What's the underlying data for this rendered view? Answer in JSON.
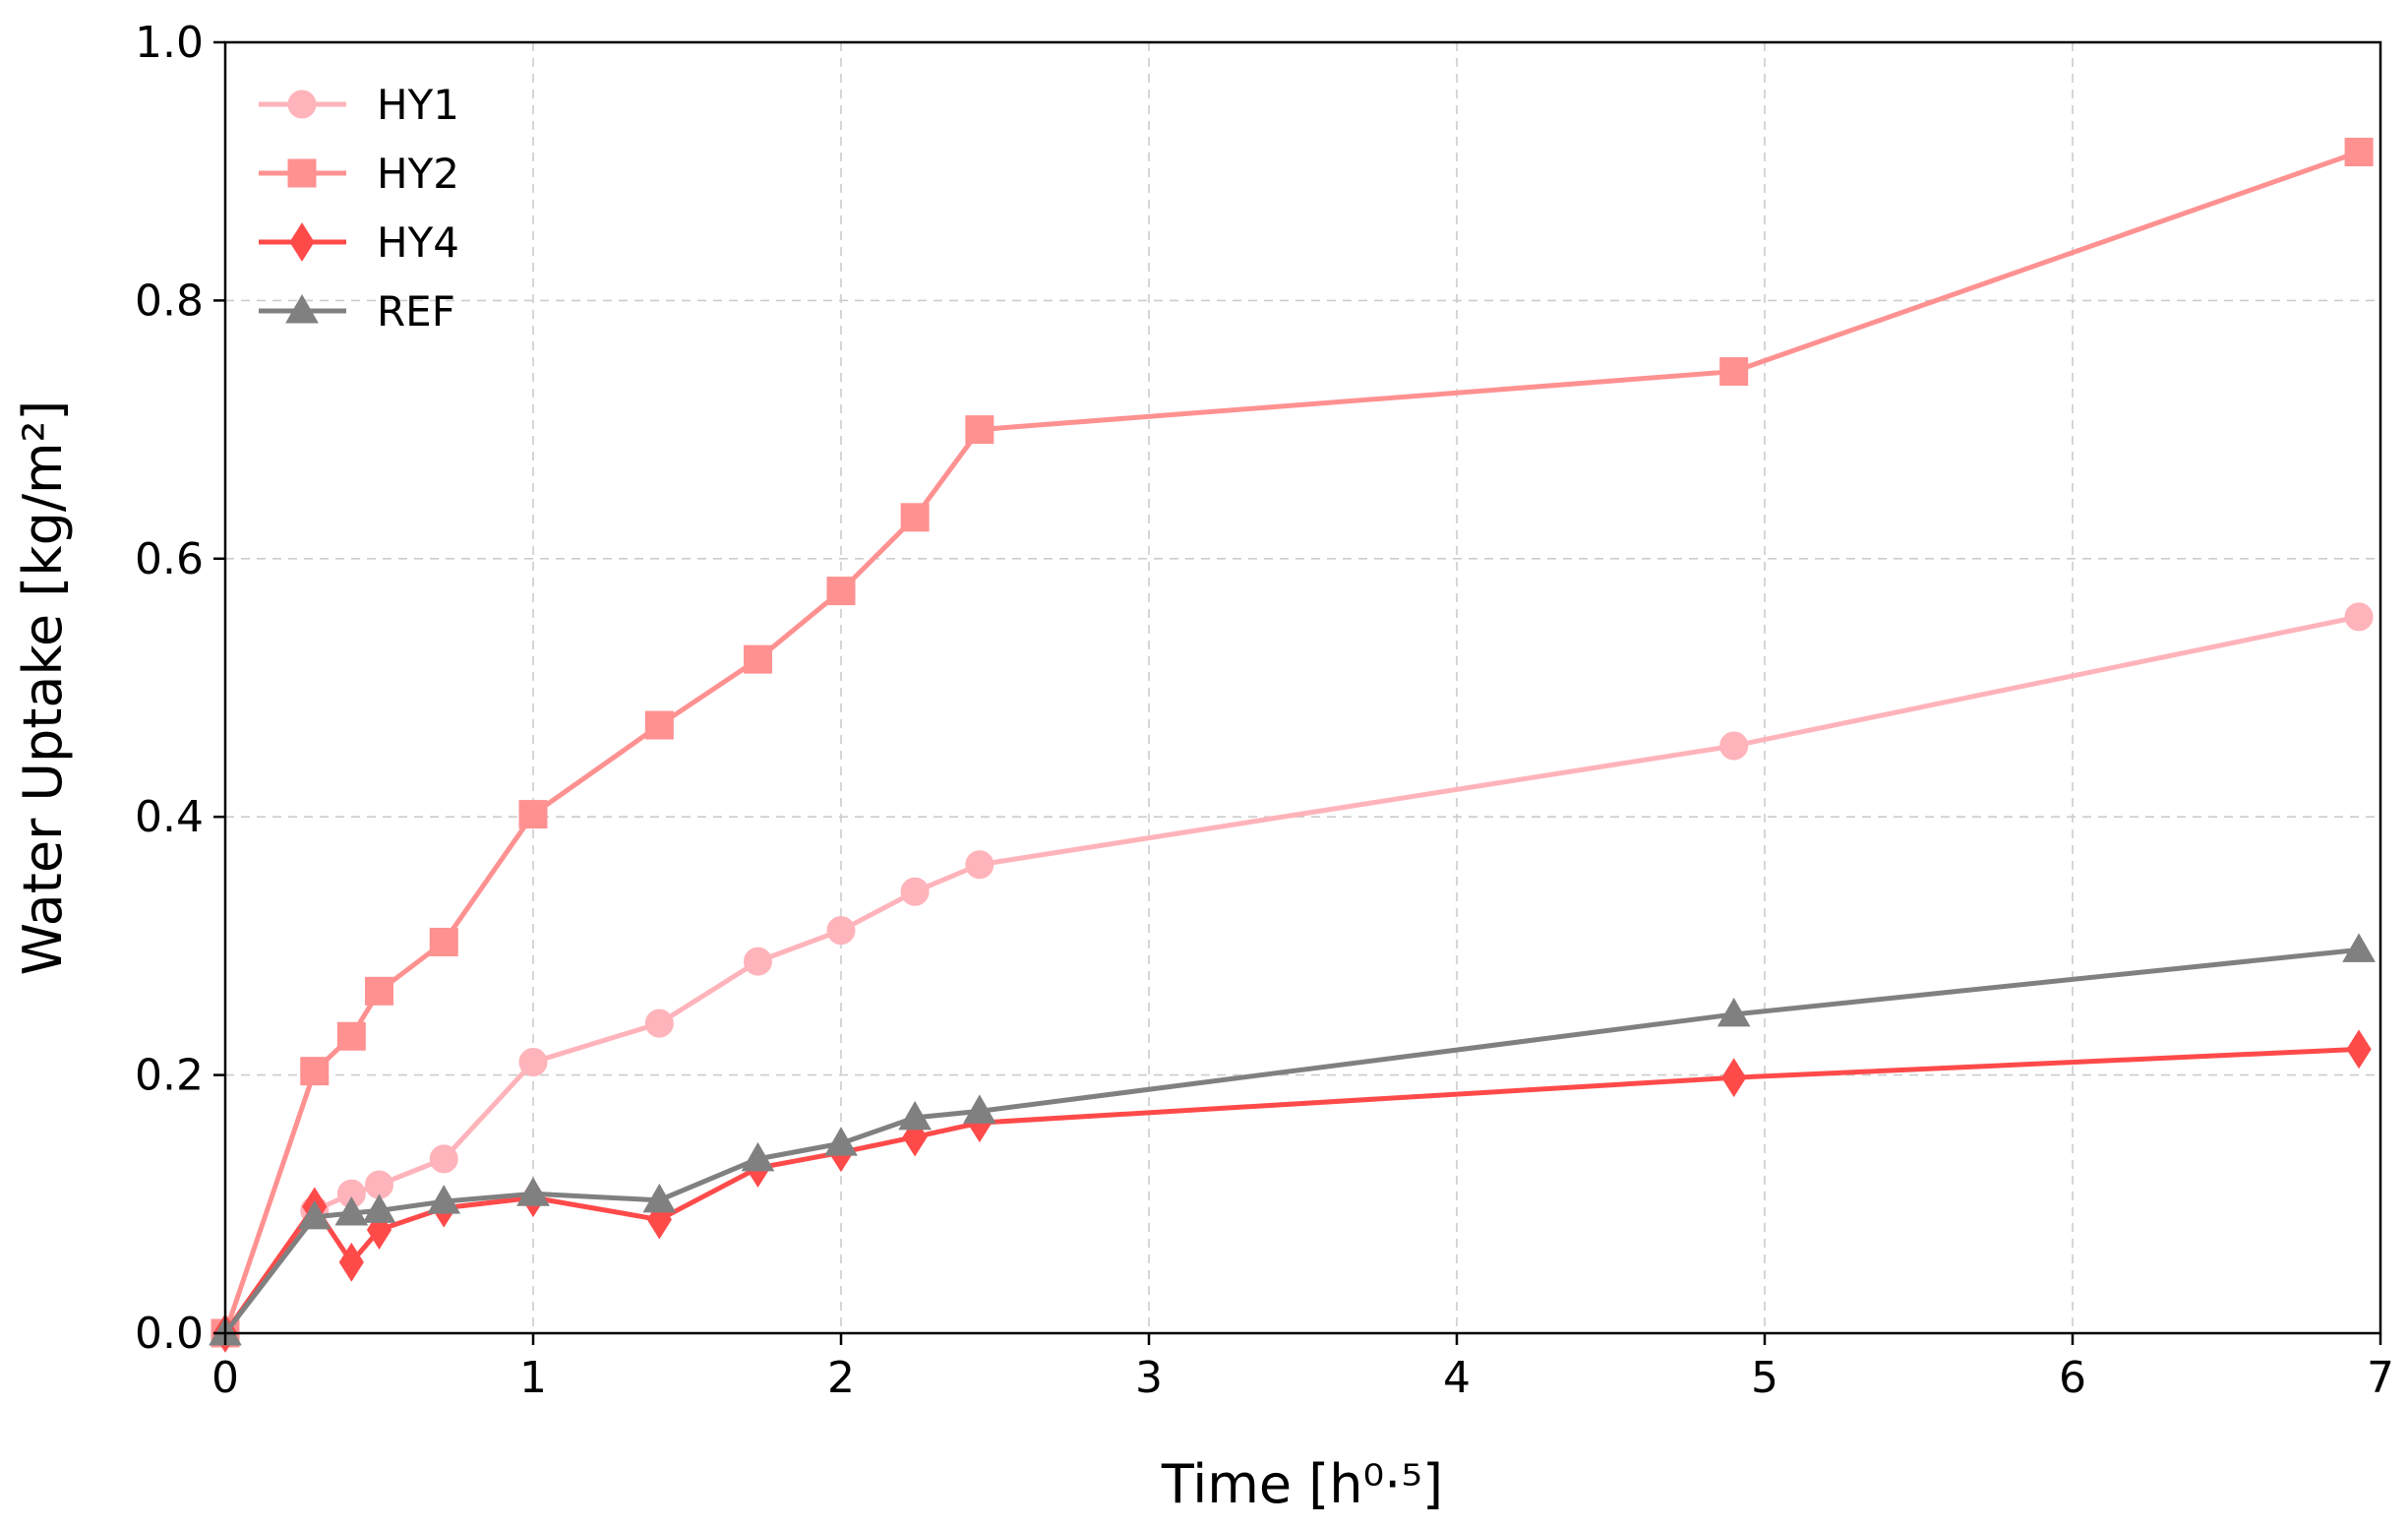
{
  "chart_data": {
    "type": "line",
    "xlabel": "Time [h⁰·⁵]",
    "ylabel": "Water Uptake [kg/m²]",
    "xlim": [
      0,
      7
    ],
    "ylim": [
      0,
      1.0
    ],
    "xticks": [
      0,
      1,
      2,
      3,
      4,
      5,
      6,
      7
    ],
    "xtick_labels": [
      "0",
      "1",
      "2",
      "3",
      "4",
      "5",
      "6",
      "7"
    ],
    "yticks": [
      0.0,
      0.2,
      0.4,
      0.6,
      0.8,
      1.0
    ],
    "ytick_labels": [
      "0.0",
      "0.2",
      "0.4",
      "0.6",
      "0.8",
      "1.0"
    ],
    "grid": true,
    "legend_position": "top-left",
    "series": [
      {
        "name": "HY1",
        "color": "#ffb3ba",
        "marker": "circle",
        "x": [
          0,
          0.29,
          0.41,
          0.5,
          0.71,
          1.0,
          1.41,
          1.73,
          2.0,
          2.24,
          2.45,
          4.9,
          6.93
        ],
        "y": [
          0.0,
          0.095,
          0.108,
          0.115,
          0.135,
          0.21,
          0.24,
          0.288,
          0.312,
          0.342,
          0.363,
          0.455,
          0.555
        ]
      },
      {
        "name": "HY2",
        "color": "#ff9191",
        "marker": "square",
        "x": [
          0,
          0.29,
          0.41,
          0.5,
          0.71,
          1.0,
          1.41,
          1.73,
          2.0,
          2.24,
          2.45,
          4.9,
          6.93
        ],
        "y": [
          0.0,
          0.203,
          0.23,
          0.265,
          0.303,
          0.402,
          0.471,
          0.522,
          0.575,
          0.632,
          0.7,
          0.745,
          0.915
        ]
      },
      {
        "name": "HY4",
        "color": "#ff4a4a",
        "marker": "diamond",
        "x": [
          0,
          0.29,
          0.41,
          0.5,
          0.71,
          1.0,
          1.41,
          1.73,
          2.0,
          2.24,
          2.45,
          4.9,
          6.93
        ],
        "y": [
          0.0,
          0.098,
          0.055,
          0.08,
          0.097,
          0.105,
          0.088,
          0.128,
          0.14,
          0.152,
          0.163,
          0.198,
          0.22
        ]
      },
      {
        "name": "REF",
        "color": "#808080",
        "marker": "triangle",
        "x": [
          0,
          0.29,
          0.41,
          0.5,
          0.71,
          1.0,
          1.41,
          1.73,
          2.0,
          2.24,
          2.45,
          4.9,
          6.93
        ],
        "y": [
          0.0,
          0.09,
          0.093,
          0.095,
          0.102,
          0.108,
          0.103,
          0.135,
          0.147,
          0.167,
          0.172,
          0.247,
          0.297
        ]
      }
    ]
  }
}
